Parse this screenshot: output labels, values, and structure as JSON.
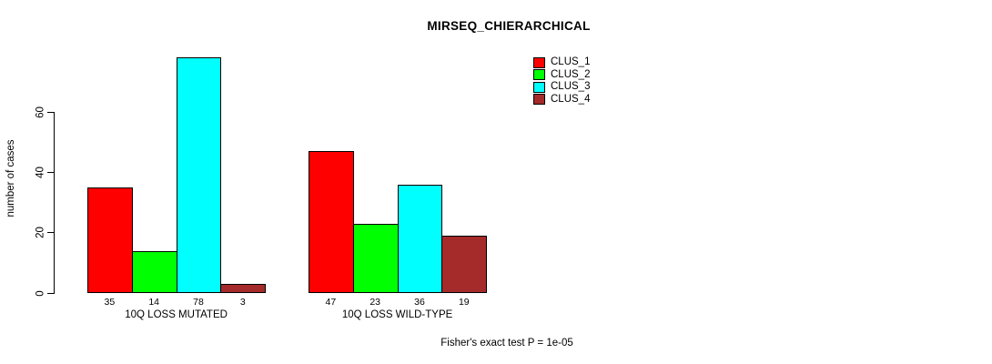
{
  "title": "MIRSEQ_CHIERARCHICAL",
  "footnote": "Fisher's exact test P = 1e-05",
  "chart_data": {
    "type": "bar",
    "title": "MIRSEQ_CHIERARCHICAL",
    "xlabel": "",
    "ylabel": "number of cases",
    "categories": [
      "10Q LOSS MUTATED",
      "10Q LOSS WILD-TYPE"
    ],
    "series": [
      {
        "name": "CLUS_1",
        "color": "#ff0000",
        "values": [
          35,
          47
        ]
      },
      {
        "name": "CLUS_2",
        "color": "#00ff00",
        "values": [
          14,
          23
        ]
      },
      {
        "name": "CLUS_3",
        "color": "#00ffff",
        "values": [
          78,
          36
        ]
      },
      {
        "name": "CLUS_4",
        "color": "#a52a2a",
        "values": [
          3,
          19
        ]
      }
    ],
    "bar_value_labels": [
      [
        35,
        14,
        78,
        3
      ],
      [
        47,
        23,
        36,
        19
      ]
    ],
    "yticks": [
      0,
      20,
      40,
      60
    ],
    "ylim": [
      0,
      80
    ],
    "grid": false,
    "legend_position": "top-right",
    "legend_entries": [
      "CLUS_1",
      "CLUS_2",
      "CLUS_3",
      "CLUS_4"
    ],
    "annotation": "Fisher's exact test P = 1e-05",
    "background": "#ffffff"
  }
}
